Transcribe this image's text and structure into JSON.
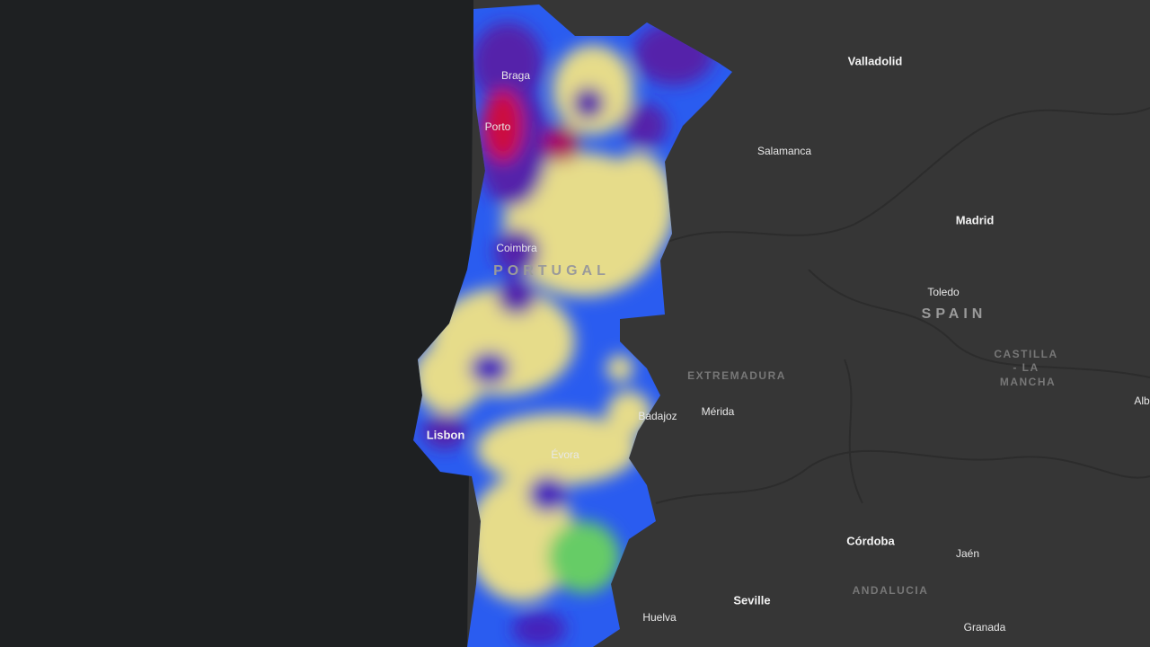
{
  "map": {
    "cities": [
      "Valladolid",
      "Braga",
      "Porto",
      "Salamanca",
      "Madrid",
      "Coimbra",
      "Toledo",
      "Mérida",
      "Badajoz",
      "Lisbon",
      "Évora",
      "Córdoba",
      "Jaén",
      "Seville",
      "Huelva",
      "Granada",
      "Alb"
    ],
    "countries": [
      "PORTUGAL",
      "SPAIN"
    ],
    "regions": [
      "EXTREMADURA",
      "CASTILLA",
      "- LA",
      "MANCHA",
      "ANDALUCIA"
    ]
  }
}
